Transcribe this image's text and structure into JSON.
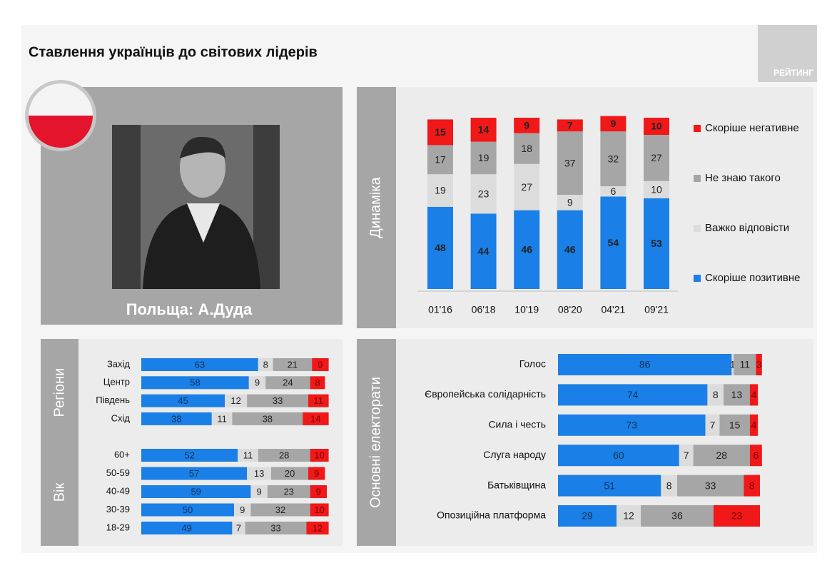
{
  "header": {
    "title": "Ставлення українців до світових лідерів",
    "logo": "РЕЙТИНГ"
  },
  "portrait": {
    "caption": "Польща: А.Дуда"
  },
  "chart_data": [
    {
      "type": "stacked-bar",
      "label": "Динаміка",
      "categories": [
        "01'16",
        "06'18",
        "10'19",
        "08'20",
        "04'21",
        "09'21"
      ],
      "series": [
        {
          "name": "Скоріше позитивне",
          "color": "#1a7fe6",
          "values": [
            48,
            44,
            46,
            46,
            54,
            53
          ]
        },
        {
          "name": "Важко відповісти",
          "color": "#dcdcdc",
          "values": [
            19,
            23,
            27,
            9,
            6,
            10
          ]
        },
        {
          "name": "Не знаю такого",
          "color": "#a6a6a6",
          "values": [
            17,
            19,
            18,
            37,
            32,
            27
          ]
        },
        {
          "name": "Скоріше негативне",
          "color": "#f01818",
          "values": [
            15,
            14,
            9,
            7,
            9,
            10
          ]
        }
      ]
    },
    {
      "type": "stacked-barh",
      "label": "Регіони",
      "categories": [
        "Захід",
        "Центр",
        "Південь",
        "Схід"
      ],
      "series": [
        {
          "color": "#1a7fe6",
          "values": [
            63,
            58,
            45,
            38
          ]
        },
        {
          "color": "#dcdcdc",
          "values": [
            8,
            9,
            12,
            11
          ]
        },
        {
          "color": "#a6a6a6",
          "values": [
            21,
            24,
            33,
            38
          ]
        },
        {
          "color": "#f01818",
          "values": [
            9,
            8,
            11,
            14
          ]
        }
      ]
    },
    {
      "type": "stacked-barh",
      "label": "Вік",
      "categories": [
        "60+",
        "50-59",
        "40-49",
        "30-39",
        "18-29"
      ],
      "series": [
        {
          "color": "#1a7fe6",
          "values": [
            52,
            57,
            59,
            50,
            49
          ]
        },
        {
          "color": "#dcdcdc",
          "values": [
            11,
            13,
            9,
            9,
            7
          ]
        },
        {
          "color": "#a6a6a6",
          "values": [
            28,
            20,
            23,
            32,
            33
          ]
        },
        {
          "color": "#f01818",
          "values": [
            10,
            9,
            9,
            10,
            12
          ]
        }
      ]
    },
    {
      "type": "stacked-barh",
      "label": "Основні електорати",
      "categories": [
        "Голос",
        "Європейська солідарність",
        "Сила і честь",
        "Слуга народу",
        "Батьківщина",
        "Опозиційна платформа"
      ],
      "series": [
        {
          "color": "#1a7fe6",
          "values": [
            86,
            74,
            73,
            60,
            51,
            29
          ]
        },
        {
          "color": "#dcdcdc",
          "values": [
            1,
            8,
            7,
            7,
            8,
            12
          ]
        },
        {
          "color": "#a6a6a6",
          "values": [
            11,
            13,
            15,
            28,
            33,
            36
          ]
        },
        {
          "color": "#f01818",
          "values": [
            3,
            4,
            4,
            6,
            8,
            23
          ]
        }
      ]
    }
  ]
}
